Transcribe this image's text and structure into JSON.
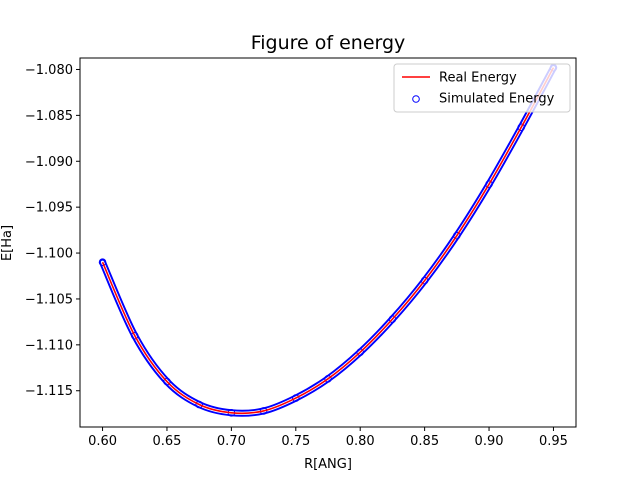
{
  "chart_data": {
    "type": "line+scatter",
    "title": "Figure of energy",
    "xlabel": "R[ANG]",
    "ylabel": "E[Ha]",
    "xlim": [
      0.5825,
      0.9675
    ],
    "ylim": [
      -1.11895,
      -1.07875
    ],
    "x_ticks": [
      0.6,
      0.65,
      0.7,
      0.75,
      0.8,
      0.85,
      0.9,
      0.95
    ],
    "x_tick_labels": [
      "0.60",
      "0.65",
      "0.70",
      "0.75",
      "0.80",
      "0.85",
      "0.90",
      "0.95"
    ],
    "y_ticks": [
      -1.08,
      -1.085,
      -1.09,
      -1.095,
      -1.1,
      -1.105,
      -1.11,
      -1.115
    ],
    "y_tick_labels": [
      "−1.080",
      "−1.085",
      "−1.090",
      "−1.095",
      "−1.100",
      "−1.105",
      "−1.110",
      "−1.115"
    ],
    "grid": false,
    "legend_position": "top-right",
    "series": [
      {
        "name": "Real Energy",
        "kind": "line",
        "color": "#ff0000",
        "x": [
          0.6,
          0.625,
          0.65,
          0.675,
          0.7,
          0.725,
          0.75,
          0.775,
          0.8,
          0.825,
          0.85,
          0.875,
          0.9,
          0.925,
          0.95
        ],
        "y": [
          -1.101,
          -1.109,
          -1.114,
          -1.1165,
          -1.1174,
          -1.1172,
          -1.1158,
          -1.1137,
          -1.1108,
          -1.1072,
          -1.103,
          -1.0981,
          -1.0925,
          -1.0863,
          -1.0798
        ]
      },
      {
        "name": "Simulated Energy",
        "kind": "scatter",
        "color": "#0000ff",
        "x": [
          0.6,
          0.625,
          0.65,
          0.675,
          0.7,
          0.725,
          0.75,
          0.775,
          0.8,
          0.825,
          0.85,
          0.875,
          0.9,
          0.925,
          0.95
        ],
        "y": [
          -1.101,
          -1.109,
          -1.114,
          -1.1165,
          -1.1174,
          -1.1172,
          -1.1158,
          -1.1137,
          -1.1108,
          -1.1072,
          -1.103,
          -1.0981,
          -1.0925,
          -1.0863,
          -1.0798
        ]
      }
    ]
  }
}
